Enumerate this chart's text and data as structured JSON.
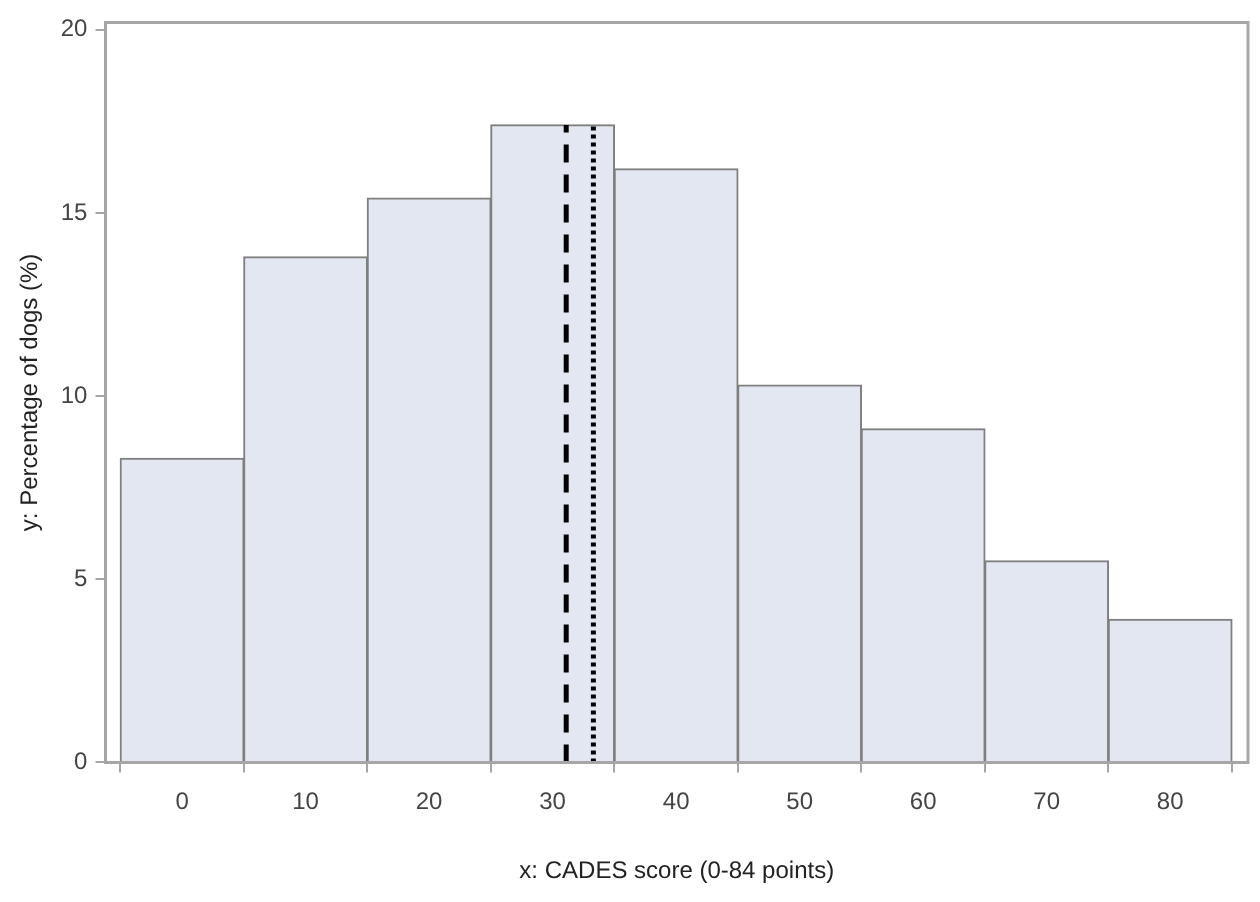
{
  "chart_data": {
    "type": "histogram",
    "xlabel": "x: CADES score (0-84 points)",
    "ylabel": "y: Percentage of dogs (%)",
    "bins": [
      -5,
      5,
      15,
      25,
      35,
      45,
      55,
      65,
      75,
      85
    ],
    "values": [
      8.3,
      13.8,
      15.4,
      17.4,
      16.2,
      10.3,
      9.1,
      5.5,
      3.9
    ],
    "color": "#e3e7f1",
    "xlim": [
      -6.2,
      86.3
    ],
    "xticks": [
      0,
      10,
      20,
      30,
      40,
      50,
      60,
      70,
      80
    ],
    "ylim": [
      0,
      20.2
    ],
    "yticks": [
      0,
      5,
      10,
      15,
      20
    ],
    "grid": false,
    "legend": false,
    "ref_lines": [
      {
        "axis": "x",
        "value": 31.1,
        "color": "#000000",
        "line_style": "dashed"
      },
      {
        "axis": "x",
        "value": 33.3,
        "color": "#000000",
        "line_style": "dotted"
      }
    ]
  }
}
